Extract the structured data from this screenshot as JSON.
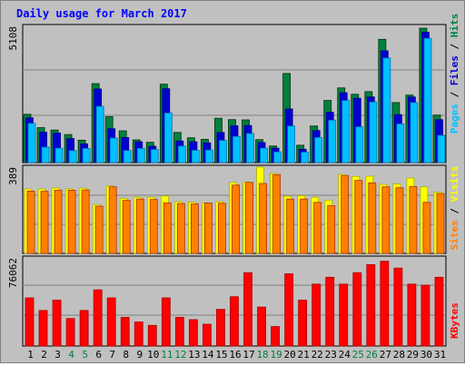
{
  "title": "Daily usage for March 2017",
  "colors": {
    "background": "#c0c0c0",
    "plot_bg": "#c0c0c0",
    "hits": "#008040",
    "files": "#0000d0",
    "pages": "#00c0ff",
    "visits": "#ffff00",
    "sites": "#ff8000",
    "kbytes": "#ff0000",
    "title": "#0000ff"
  },
  "chart_data": [
    {
      "type": "bar",
      "name": "hits-files-pages",
      "title": "Daily usage for March 2017",
      "ymax_label": "5108",
      "ylim": [
        0,
        5108
      ],
      "categories": [
        "1",
        "2",
        "3",
        "4",
        "5",
        "6",
        "7",
        "8",
        "9",
        "10",
        "11",
        "12",
        "13",
        "14",
        "15",
        "16",
        "17",
        "18",
        "19",
        "20",
        "21",
        "22",
        "23",
        "24",
        "25",
        "26",
        "27",
        "28",
        "29",
        "30",
        "31"
      ],
      "weekend_days": [
        "4",
        "5",
        "11",
        "12",
        "18",
        "19",
        "25",
        "26"
      ],
      "series": [
        {
          "name": "Hits",
          "values": [
            1810,
            1310,
            1220,
            1050,
            840,
            2960,
            1720,
            1190,
            850,
            760,
            2940,
            1130,
            930,
            870,
            1660,
            1610,
            1600,
            860,
            620,
            3340,
            650,
            1370,
            2330,
            2800,
            2560,
            2660,
            4620,
            2250,
            2530,
            5040,
            1780
          ]
        },
        {
          "name": "Files",
          "values": [
            1680,
            1140,
            1110,
            900,
            700,
            2760,
            1270,
            940,
            780,
            610,
            2770,
            810,
            780,
            740,
            1130,
            1380,
            1390,
            750,
            540,
            2010,
            500,
            1200,
            1890,
            2620,
            2410,
            2460,
            4190,
            1800,
            2460,
            4890,
            1610
          ]
        },
        {
          "name": "Pages",
          "values": [
            1470,
            580,
            540,
            450,
            530,
            2110,
            920,
            450,
            530,
            490,
            1860,
            620,
            460,
            470,
            830,
            980,
            1090,
            540,
            400,
            1370,
            390,
            940,
            1590,
            2330,
            1340,
            2270,
            3920,
            1450,
            2250,
            4660,
            1020
          ]
        }
      ],
      "legend": [
        "Pages",
        "Files",
        "Hits"
      ]
    },
    {
      "type": "bar",
      "name": "visits-sites",
      "ymax_label": "389",
      "ylim": [
        0,
        389
      ],
      "categories": [
        "1",
        "2",
        "3",
        "4",
        "5",
        "6",
        "7",
        "8",
        "9",
        "10",
        "11",
        "12",
        "13",
        "14",
        "15",
        "16",
        "17",
        "18",
        "19",
        "20",
        "21",
        "22",
        "23",
        "24",
        "25",
        "26",
        "27",
        "28",
        "29",
        "30",
        "31"
      ],
      "series": [
        {
          "name": "Visits",
          "values": [
            290,
            290,
            295,
            291,
            294,
            220,
            304,
            248,
            253,
            253,
            259,
            233,
            231,
            228,
            233,
            319,
            322,
            389,
            360,
            258,
            260,
            253,
            240,
            356,
            347,
            348,
            311,
            313,
            340,
            300,
            276
          ]
        },
        {
          "name": "Sites",
          "values": [
            281,
            280,
            285,
            285,
            286,
            213,
            300,
            239,
            245,
            243,
            228,
            225,
            223,
            227,
            226,
            308,
            320,
            315,
            355,
            245,
            245,
            230,
            215,
            351,
            329,
            318,
            300,
            296,
            301,
            230,
            270
          ]
        }
      ],
      "legend": [
        "Sites",
        "Visits"
      ]
    },
    {
      "type": "bar",
      "name": "kbytes",
      "ymax_label": "76062",
      "ylim": [
        0,
        76062
      ],
      "categories": [
        "1",
        "2",
        "3",
        "4",
        "5",
        "6",
        "7",
        "8",
        "9",
        "10",
        "11",
        "12",
        "13",
        "14",
        "15",
        "16",
        "17",
        "18",
        "19",
        "20",
        "21",
        "22",
        "23",
        "24",
        "25",
        "26",
        "27",
        "28",
        "29",
        "30",
        "31"
      ],
      "series": [
        {
          "name": "KBytes",
          "values": [
            42000,
            31000,
            40000,
            24000,
            31000,
            49000,
            42000,
            25000,
            21000,
            18000,
            42000,
            25000,
            23000,
            19000,
            32000,
            43000,
            64000,
            34000,
            17000,
            63000,
            40000,
            54000,
            60000,
            54000,
            64000,
            71000,
            74000,
            68000,
            54000,
            53000,
            60000
          ]
        }
      ],
      "legend": [
        "KBytes"
      ]
    }
  ]
}
